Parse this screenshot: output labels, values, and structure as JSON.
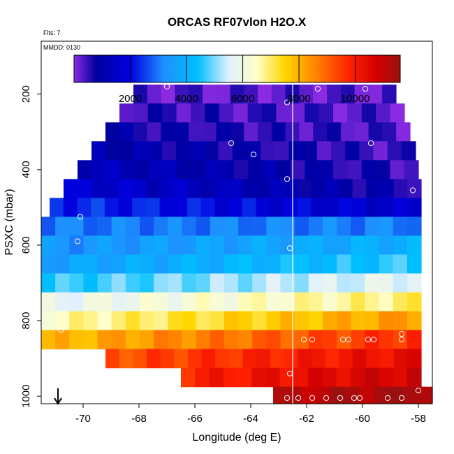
{
  "chart_data": {
    "type": "heatmap",
    "title": "ORCAS RF07vlon H2O.X",
    "flts_label": "Flts: 7",
    "mmdd_label": "MMDD: 0130",
    "xlabel": "Longitude (deg E)",
    "ylabel": "PSXC (mbar)",
    "xlim": [
      -71.5,
      -57.5
    ],
    "ylim": [
      1020,
      60
    ],
    "y_reversed": true,
    "x_ticks": [
      -70,
      -68,
      -66,
      -64,
      -62,
      -60,
      -58
    ],
    "y_ticks": [
      200,
      400,
      600,
      800,
      1000
    ],
    "colorbar": {
      "range": [
        0,
        11600
      ],
      "ticks": [
        2000,
        4000,
        6000,
        8000,
        10000
      ],
      "tick_labels": [
        "2000",
        "4000",
        "6000",
        "8000",
        "10000"
      ],
      "stops": [
        {
          "v": 0,
          "c": "#8a2be2"
        },
        {
          "v": 800,
          "c": "#0000a0"
        },
        {
          "v": 2000,
          "c": "#0000dd"
        },
        {
          "v": 3200,
          "c": "#1e90ff"
        },
        {
          "v": 4400,
          "c": "#00bfff"
        },
        {
          "v": 5500,
          "c": "#e0f0ff"
        },
        {
          "v": 6500,
          "c": "#ffffc8"
        },
        {
          "v": 7500,
          "c": "#ffd700"
        },
        {
          "v": 8500,
          "c": "#ff8c00"
        },
        {
          "v": 9800,
          "c": "#ff2000"
        },
        {
          "v": 10800,
          "c": "#d00000"
        },
        {
          "v": 11600,
          "c": "#9a1010"
        }
      ]
    },
    "rows": [
      {
        "p": 200,
        "x0": -68.2,
        "x1": -58.8,
        "lv": 300,
        "rv": 300
      },
      {
        "p": 250,
        "x0": -68.7,
        "x1": -58.5,
        "lv": 550,
        "rv": 300
      },
      {
        "p": 300,
        "x0": -69.2,
        "x1": -58.3,
        "lv": 800,
        "rv": 350
      },
      {
        "p": 350,
        "x0": -69.7,
        "x1": -58.1,
        "lv": 1100,
        "rv": 400
      },
      {
        "p": 400,
        "x0": -70.2,
        "x1": -58.0,
        "lv": 1400,
        "rv": 500
      },
      {
        "p": 450,
        "x0": -70.7,
        "x1": -57.9,
        "lv": 1800,
        "rv": 700
      },
      {
        "p": 500,
        "x0": -71.2,
        "x1": -57.9,
        "lv": 2400,
        "rv": 1600
      },
      {
        "p": 550,
        "x0": -71.5,
        "x1": -57.9,
        "lv": 3000,
        "rv": 3100
      },
      {
        "p": 600,
        "x0": -71.5,
        "x1": -57.9,
        "lv": 3300,
        "rv": 4000
      },
      {
        "p": 650,
        "x0": -71.8,
        "x1": -57.9,
        "lv": 3600,
        "rv": 4600
      },
      {
        "p": 700,
        "x0": -71.8,
        "x1": -57.9,
        "lv": 4500,
        "rv": 5800
      },
      {
        "p": 750,
        "x0": -72.0,
        "x1": -57.9,
        "lv": 5700,
        "rv": 7000
      },
      {
        "p": 800,
        "x0": -72.0,
        "x1": -57.9,
        "lv": 6500,
        "rv": 8400
      },
      {
        "p": 850,
        "x0": -72.0,
        "x1": -57.9,
        "lv": 7800,
        "rv": 9800
      },
      {
        "p": 900,
        "x0": -69.2,
        "x1": -57.9,
        "lv": 9200,
        "rv": 10400
      },
      {
        "p": 950,
        "x0": -66.5,
        "x1": -57.9,
        "lv": 9800,
        "rv": 10900
      },
      {
        "p": 1000,
        "x0": -63.2,
        "x1": -57.5,
        "lv": 11000,
        "rv": 11600
      }
    ],
    "vertical_line_x": -62.5,
    "arrow_x": -70.9,
    "points": [
      {
        "x": -67.0,
        "y": 180
      },
      {
        "x": -62.7,
        "y": 222
      },
      {
        "x": -61.6,
        "y": 186
      },
      {
        "x": -59.9,
        "y": 186
      },
      {
        "x": -64.7,
        "y": 330
      },
      {
        "x": -63.9,
        "y": 360
      },
      {
        "x": -59.7,
        "y": 330
      },
      {
        "x": -62.7,
        "y": 425
      },
      {
        "x": -58.2,
        "y": 455
      },
      {
        "x": -70.1,
        "y": 525
      },
      {
        "x": -70.2,
        "y": 590
      },
      {
        "x": -62.6,
        "y": 608
      },
      {
        "x": -70.8,
        "y": 825
      },
      {
        "x": -62.1,
        "y": 850
      },
      {
        "x": -61.8,
        "y": 850
      },
      {
        "x": -60.7,
        "y": 850
      },
      {
        "x": -60.5,
        "y": 850
      },
      {
        "x": -59.8,
        "y": 850
      },
      {
        "x": -59.6,
        "y": 850
      },
      {
        "x": -58.6,
        "y": 835
      },
      {
        "x": -58.6,
        "y": 850
      },
      {
        "x": -62.6,
        "y": 940
      },
      {
        "x": -62.7,
        "y": 1005
      },
      {
        "x": -62.3,
        "y": 1005
      },
      {
        "x": -61.8,
        "y": 1005
      },
      {
        "x": -61.3,
        "y": 1005
      },
      {
        "x": -60.8,
        "y": 1005
      },
      {
        "x": -60.3,
        "y": 1005
      },
      {
        "x": -60.1,
        "y": 1005
      },
      {
        "x": -59.1,
        "y": 1005
      },
      {
        "x": -58.6,
        "y": 1005
      },
      {
        "x": -58.0,
        "y": 985
      }
    ]
  }
}
